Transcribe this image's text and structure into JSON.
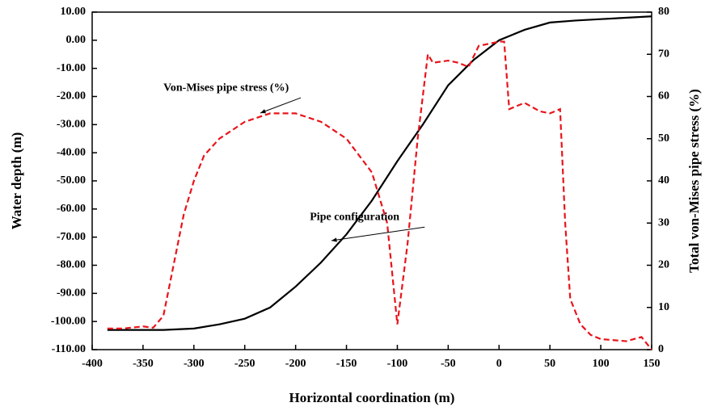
{
  "chart_data": {
    "type": "line",
    "xlabel": "Horizontal coordination (m)",
    "ylabel": "Water depth (m)",
    "y2label": "Total von-Mises pipe stress (%)",
    "xlim": [
      -400,
      150
    ],
    "xticks": [
      -400,
      -350,
      -300,
      -250,
      -200,
      -150,
      -100,
      -50,
      0,
      50,
      100,
      150
    ],
    "ylim": [
      -110,
      10
    ],
    "yticks": [
      {
        "value": 10,
        "label": "10.00"
      },
      {
        "value": 0,
        "label": "0.00"
      },
      {
        "value": -10,
        "label": "-10.00"
      },
      {
        "value": -20,
        "label": "-20.00"
      },
      {
        "value": -30,
        "label": "-30.00"
      },
      {
        "value": -40,
        "label": "-40.00"
      },
      {
        "value": -50,
        "label": "-50.00"
      },
      {
        "value": -60,
        "label": "-60.00"
      },
      {
        "value": -70,
        "label": "-70.00"
      },
      {
        "value": -80,
        "label": "-80.00"
      },
      {
        "value": -90,
        "label": "-90.00"
      },
      {
        "value": -100,
        "label": "-100.00"
      },
      {
        "value": -110,
        "label": "-110.00"
      }
    ],
    "y2lim": [
      0,
      80
    ],
    "y2ticks": [
      0,
      10,
      20,
      30,
      40,
      50,
      60,
      70,
      80
    ],
    "series": [
      {
        "color": "#000000",
        "axis": "y",
        "dash": false,
        "x": [
          -385,
          -330,
          -300,
          -275,
          -250,
          -225,
          -200,
          -175,
          -150,
          -125,
          -100,
          -75,
          -50,
          -25,
          0,
          25,
          50,
          75,
          100,
          150
        ],
        "values": [
          -103,
          -103,
          -102.5,
          -101,
          -99,
          -95,
          -87.6,
          -79,
          -69,
          -57,
          -43,
          -30,
          -16,
          -7,
          0,
          3.7,
          6.3,
          7,
          7.5,
          8.5
        ]
      },
      {
        "color": "#e8141b",
        "axis": "y2",
        "dash": true,
        "x": [
          -385,
          -370,
          -350,
          -340,
          -330,
          -320,
          -310,
          -300,
          -290,
          -275,
          -250,
          -225,
          -200,
          -175,
          -150,
          -125,
          -110,
          -100,
          -90,
          -80,
          -70,
          -65,
          -50,
          -40,
          -30,
          -20,
          0,
          5,
          10,
          25,
          40,
          50,
          60,
          65,
          70,
          80,
          90,
          100,
          125,
          140,
          150
        ],
        "values": [
          5,
          5,
          5.5,
          5.2,
          8,
          20,
          32,
          40,
          46,
          50,
          54,
          56,
          56,
          54,
          50,
          42,
          30,
          6,
          25,
          50,
          70,
          68,
          68.5,
          68,
          67,
          72,
          73,
          73,
          57,
          58.5,
          56.5,
          56,
          57,
          30,
          12,
          6,
          3.5,
          2.5,
          2,
          3,
          0
        ]
      }
    ],
    "annotations": [
      {
        "text": "Von-Mises pipe stress (%)",
        "x": -330,
        "y": -17
      },
      {
        "text": "Pipe configuration",
        "x": -186,
        "y": -63
      }
    ]
  }
}
